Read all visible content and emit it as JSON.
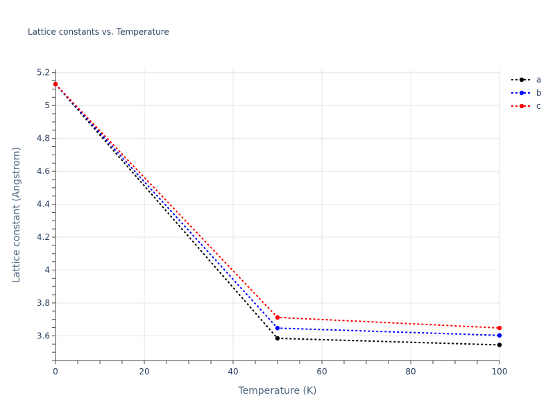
{
  "chart_data": {
    "type": "line",
    "title": "Lattice constants vs. Temperature",
    "xlabel": "Temperature (K)",
    "ylabel": "Lattice constant (Angstrom)",
    "xlim": [
      0,
      100
    ],
    "ylim": [
      3.45,
      5.22
    ],
    "x_ticks": [
      0,
      20,
      40,
      60,
      80,
      100
    ],
    "x_tick_labels": [
      "0",
      "20",
      "40",
      "60",
      "80",
      "100"
    ],
    "y_ticks": [
      3.6,
      3.8,
      4.0,
      4.2,
      4.4,
      4.6,
      4.8,
      5.0,
      5.2
    ],
    "y_tick_labels": [
      "3.6",
      "3.8",
      "4",
      "4.2",
      "4.4",
      "4.6",
      "4.8",
      "5",
      "5.2"
    ],
    "grid": true,
    "legend_position": "top-right",
    "x": [
      0,
      50,
      100
    ],
    "series": [
      {
        "name": "a",
        "color": "#000000",
        "values": [
          5.13,
          3.585,
          3.545
        ]
      },
      {
        "name": "b",
        "color": "#0000ff",
        "values": [
          5.13,
          3.647,
          3.603
        ]
      },
      {
        "name": "c",
        "color": "#ff0000",
        "values": [
          5.13,
          3.712,
          3.648
        ]
      }
    ]
  }
}
